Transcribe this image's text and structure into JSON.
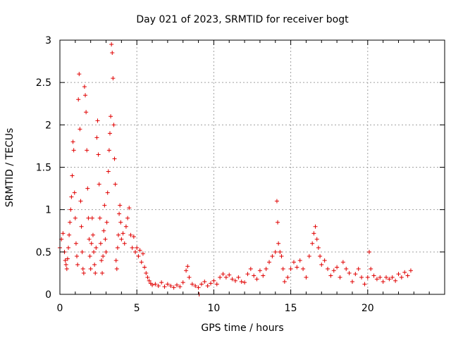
{
  "chart_data": {
    "type": "scatter",
    "title": "Day 021 of 2023, SRMTID for receiver bogt",
    "xlabel": "GPS time / hours",
    "ylabel": "SRMTID / TECUs",
    "xlim": [
      0,
      25
    ],
    "ylim": [
      0,
      3
    ],
    "xticks": [
      "0",
      "5",
      "10",
      "15",
      "20"
    ],
    "yticks": [
      "0",
      "0.5",
      "1",
      "1.5",
      "2",
      "2.5",
      "3"
    ],
    "grid": true,
    "marker": "+",
    "color": "#e00000",
    "series": [
      {
        "name": "SRMTID",
        "points": [
          [
            0.0,
            0.55
          ],
          [
            0.1,
            0.65
          ],
          [
            0.2,
            0.72
          ],
          [
            0.3,
            0.5
          ],
          [
            0.35,
            0.4
          ],
          [
            0.4,
            0.35
          ],
          [
            0.45,
            0.3
          ],
          [
            0.5,
            0.42
          ],
          [
            0.55,
            0.55
          ],
          [
            0.6,
            0.7
          ],
          [
            0.65,
            0.85
          ],
          [
            0.7,
            1.0
          ],
          [
            0.75,
            1.15
          ],
          [
            0.8,
            1.4
          ],
          [
            0.85,
            1.8
          ],
          [
            0.9,
            1.7
          ],
          [
            0.95,
            1.2
          ],
          [
            1.0,
            0.9
          ],
          [
            1.05,
            0.6
          ],
          [
            1.1,
            0.45
          ],
          [
            1.15,
            0.35
          ],
          [
            1.2,
            2.3
          ],
          [
            1.25,
            2.6
          ],
          [
            1.3,
            1.95
          ],
          [
            1.35,
            1.1
          ],
          [
            1.4,
            0.8
          ],
          [
            1.45,
            0.5
          ],
          [
            1.5,
            0.3
          ],
          [
            1.55,
            0.25
          ],
          [
            1.6,
            2.45
          ],
          [
            1.65,
            2.35
          ],
          [
            1.7,
            2.15
          ],
          [
            1.75,
            1.7
          ],
          [
            1.8,
            1.25
          ],
          [
            1.85,
            0.9
          ],
          [
            1.9,
            0.65
          ],
          [
            1.95,
            0.45
          ],
          [
            2.0,
            0.3
          ],
          [
            2.05,
            0.6
          ],
          [
            2.1,
            0.9
          ],
          [
            2.15,
            0.7
          ],
          [
            2.2,
            0.5
          ],
          [
            2.25,
            0.35
          ],
          [
            2.3,
            0.25
          ],
          [
            2.35,
            0.55
          ],
          [
            2.4,
            1.85
          ],
          [
            2.45,
            2.05
          ],
          [
            2.5,
            1.65
          ],
          [
            2.55,
            1.3
          ],
          [
            2.6,
            0.9
          ],
          [
            2.65,
            0.6
          ],
          [
            2.7,
            0.4
          ],
          [
            2.75,
            0.25
          ],
          [
            2.8,
            0.45
          ],
          [
            2.85,
            0.75
          ],
          [
            2.9,
            1.05
          ],
          [
            2.95,
            0.65
          ],
          [
            3.0,
            0.5
          ],
          [
            3.05,
            0.85
          ],
          [
            3.1,
            1.2
          ],
          [
            3.15,
            1.45
          ],
          [
            3.2,
            1.7
          ],
          [
            3.25,
            1.9
          ],
          [
            3.3,
            2.1
          ],
          [
            3.35,
            2.95
          ],
          [
            3.4,
            2.85
          ],
          [
            3.45,
            2.55
          ],
          [
            3.5,
            2.0
          ],
          [
            3.55,
            1.6
          ],
          [
            3.6,
            1.3
          ],
          [
            3.65,
            0.4
          ],
          [
            3.7,
            0.3
          ],
          [
            3.75,
            0.55
          ],
          [
            3.8,
            0.7
          ],
          [
            3.85,
            0.95
          ],
          [
            3.9,
            1.05
          ],
          [
            3.95,
            0.85
          ],
          [
            4.0,
            0.65
          ],
          [
            4.1,
            0.72
          ],
          [
            4.2,
            0.6
          ],
          [
            4.3,
            0.8
          ],
          [
            4.4,
            0.9
          ],
          [
            4.5,
            1.02
          ],
          [
            4.6,
            0.7
          ],
          [
            4.7,
            0.55
          ],
          [
            4.8,
            0.68
          ],
          [
            4.9,
            0.5
          ],
          [
            5.0,
            0.55
          ],
          [
            5.1,
            0.45
          ],
          [
            5.2,
            0.52
          ],
          [
            5.3,
            0.38
          ],
          [
            5.4,
            0.48
          ],
          [
            5.5,
            0.32
          ],
          [
            5.6,
            0.25
          ],
          [
            5.7,
            0.2
          ],
          [
            5.8,
            0.16
          ],
          [
            5.9,
            0.13
          ],
          [
            6.0,
            0.11
          ],
          [
            6.2,
            0.12
          ],
          [
            6.4,
            0.1
          ],
          [
            6.6,
            0.14
          ],
          [
            6.8,
            0.09
          ],
          [
            7.0,
            0.12
          ],
          [
            7.2,
            0.1
          ],
          [
            7.4,
            0.08
          ],
          [
            7.6,
            0.11
          ],
          [
            7.8,
            0.09
          ],
          [
            8.0,
            0.14
          ],
          [
            8.2,
            0.28
          ],
          [
            8.3,
            0.33
          ],
          [
            8.4,
            0.2
          ],
          [
            8.6,
            0.12
          ],
          [
            8.8,
            0.1
          ],
          [
            9.0,
            0.08
          ],
          [
            9.05,
            0.0
          ],
          [
            9.2,
            0.12
          ],
          [
            9.4,
            0.15
          ],
          [
            9.6,
            0.1
          ],
          [
            9.8,
            0.13
          ],
          [
            10.0,
            0.16
          ],
          [
            10.2,
            0.12
          ],
          [
            10.4,
            0.2
          ],
          [
            10.6,
            0.24
          ],
          [
            10.8,
            0.2
          ],
          [
            11.0,
            0.23
          ],
          [
            11.2,
            0.18
          ],
          [
            11.4,
            0.16
          ],
          [
            11.6,
            0.2
          ],
          [
            11.8,
            0.15
          ],
          [
            12.0,
            0.14
          ],
          [
            12.2,
            0.24
          ],
          [
            12.4,
            0.3
          ],
          [
            12.6,
            0.22
          ],
          [
            12.8,
            0.18
          ],
          [
            13.0,
            0.28
          ],
          [
            13.2,
            0.22
          ],
          [
            13.4,
            0.3
          ],
          [
            13.6,
            0.38
          ],
          [
            13.8,
            0.45
          ],
          [
            14.0,
            0.5
          ],
          [
            14.1,
            1.1
          ],
          [
            14.15,
            0.85
          ],
          [
            14.2,
            0.6
          ],
          [
            14.3,
            0.5
          ],
          [
            14.4,
            0.45
          ],
          [
            14.5,
            0.3
          ],
          [
            14.6,
            0.15
          ],
          [
            14.8,
            0.2
          ],
          [
            15.0,
            0.3
          ],
          [
            15.2,
            0.38
          ],
          [
            15.4,
            0.32
          ],
          [
            15.6,
            0.4
          ],
          [
            15.8,
            0.3
          ],
          [
            16.0,
            0.2
          ],
          [
            16.2,
            0.45
          ],
          [
            16.4,
            0.6
          ],
          [
            16.5,
            0.72
          ],
          [
            16.6,
            0.8
          ],
          [
            16.7,
            0.65
          ],
          [
            16.8,
            0.55
          ],
          [
            16.9,
            0.45
          ],
          [
            17.0,
            0.35
          ],
          [
            17.2,
            0.4
          ],
          [
            17.4,
            0.3
          ],
          [
            17.6,
            0.22
          ],
          [
            17.8,
            0.28
          ],
          [
            18.0,
            0.32
          ],
          [
            18.2,
            0.2
          ],
          [
            18.4,
            0.38
          ],
          [
            18.6,
            0.3
          ],
          [
            18.8,
            0.25
          ],
          [
            19.0,
            0.15
          ],
          [
            19.2,
            0.24
          ],
          [
            19.4,
            0.3
          ],
          [
            19.6,
            0.2
          ],
          [
            19.8,
            0.12
          ],
          [
            20.0,
            0.2
          ],
          [
            20.1,
            0.5
          ],
          [
            20.2,
            0.3
          ],
          [
            20.4,
            0.22
          ],
          [
            20.6,
            0.18
          ],
          [
            20.8,
            0.2
          ],
          [
            21.0,
            0.15
          ],
          [
            21.2,
            0.2
          ],
          [
            21.4,
            0.18
          ],
          [
            21.6,
            0.2
          ],
          [
            21.8,
            0.16
          ],
          [
            22.0,
            0.24
          ],
          [
            22.2,
            0.2
          ],
          [
            22.4,
            0.26
          ],
          [
            22.6,
            0.22
          ],
          [
            22.8,
            0.28
          ]
        ]
      }
    ]
  }
}
